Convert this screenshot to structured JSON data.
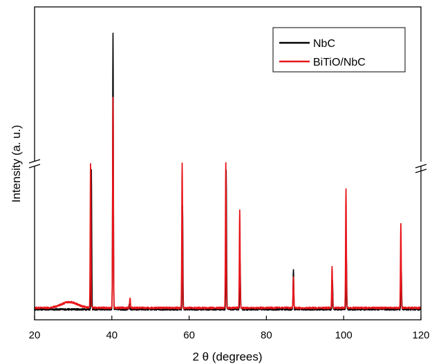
{
  "chart_data": {
    "type": "line",
    "title": "",
    "xlabel": "2 θ (degrees)",
    "ylabel": "Intensity (a. u.)",
    "xlim": [
      20,
      120
    ],
    "x_ticks": [
      "20",
      "40",
      "60",
      "80",
      "100",
      "120"
    ],
    "y_ticks": [],
    "y_axis_break": true,
    "grid": false,
    "legend_position": "top-right",
    "series": [
      {
        "name": "NbC",
        "color": "#000000",
        "baseline": 0.01,
        "broad_humps": [],
        "peaks": [
          {
            "x": 34.7,
            "height": 0.96
          },
          {
            "x": 40.3,
            "height": 2.0
          },
          {
            "x": 44.5,
            "height": 0.03
          },
          {
            "x": 58.3,
            "height": 0.72
          },
          {
            "x": 69.6,
            "height": 0.96
          },
          {
            "x": 73.2,
            "height": 0.32
          },
          {
            "x": 87.0,
            "height": 0.28
          },
          {
            "x": 97.1,
            "height": 0.2
          },
          {
            "x": 100.7,
            "height": 0.36
          },
          {
            "x": 114.9,
            "height": 0.3
          }
        ]
      },
      {
        "name": "BiTiO/NbC",
        "color": "#e8161b",
        "baseline": 0.02,
        "broad_humps": [
          {
            "x": 29.0,
            "height": 0.04,
            "width": 3.0
          }
        ],
        "peaks": [
          {
            "x": 34.5,
            "height": 1.0
          },
          {
            "x": 40.3,
            "height": 1.5
          },
          {
            "x": 44.7,
            "height": 0.07
          },
          {
            "x": 58.2,
            "height": 1.0
          },
          {
            "x": 69.5,
            "height": 1.0
          },
          {
            "x": 73.1,
            "height": 0.67
          },
          {
            "x": 87.0,
            "height": 0.21
          },
          {
            "x": 97.0,
            "height": 0.29
          },
          {
            "x": 100.6,
            "height": 0.82
          },
          {
            "x": 114.8,
            "height": 0.58
          }
        ]
      }
    ]
  }
}
